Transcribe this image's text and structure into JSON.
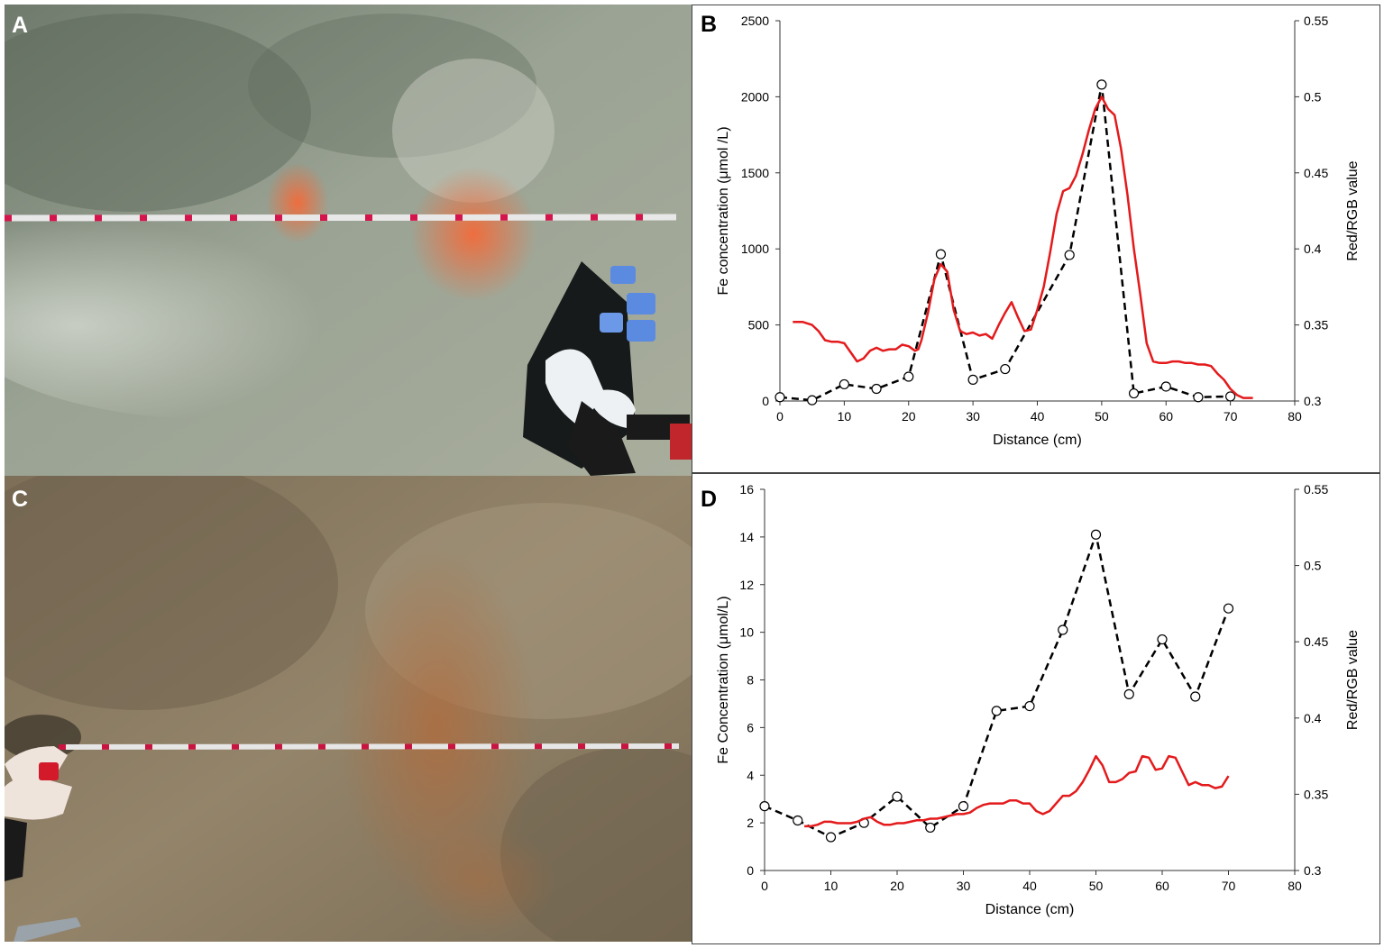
{
  "panels": {
    "a": {
      "label": "A"
    },
    "b": {
      "label": "B"
    },
    "c": {
      "label": "C"
    },
    "d": {
      "label": "D"
    }
  },
  "colors": {
    "red_rgb_line": "#e41a1c",
    "fe_line": "#000000",
    "photo_a_sediment": "#8f9a8e",
    "photo_a_stain": "#f26b3a",
    "photo_c_sediment": "#8a7a60",
    "photo_c_stain": "#b26a3a"
  },
  "chart_data": [
    {
      "panel": "B",
      "type": "line",
      "xlabel": "Distance (cm)",
      "ylabel": "Fe concentration (μmol /L)",
      "y2label": "Red/RGB value",
      "xlim": [
        0,
        80
      ],
      "xticks": [
        0,
        10,
        20,
        30,
        40,
        50,
        60,
        70,
        80
      ],
      "ylim": [
        0,
        2500
      ],
      "yticks": [
        0,
        500,
        1000,
        1500,
        2000,
        2500
      ],
      "y2lim": [
        0.3,
        0.55
      ],
      "y2ticks": [
        "0.3",
        "0.35",
        "0.4",
        "0.45",
        "0.5",
        "0.55"
      ],
      "grid": false,
      "series": [
        {
          "axis": "left",
          "style": "dashed",
          "marker": "open-circle",
          "x": [
            0,
            5,
            10,
            15,
            20,
            25,
            30,
            35,
            45,
            50,
            55,
            60,
            65,
            70
          ],
          "values": [
            25,
            5,
            110,
            80,
            160,
            965,
            140,
            210,
            960,
            2080,
            50,
            95,
            25,
            30
          ]
        },
        {
          "axis": "right",
          "style": "solid",
          "marker": "none",
          "x": [
            2,
            3.5,
            5,
            6,
            7,
            8,
            9,
            10,
            11,
            12,
            13,
            14,
            15,
            16,
            17,
            18,
            19,
            20,
            21,
            21.5,
            22,
            23,
            24,
            25,
            26,
            27,
            28,
            29,
            30,
            31,
            32,
            33,
            34,
            35,
            36,
            37,
            38,
            39,
            40,
            41,
            42,
            43,
            44,
            45,
            46,
            47,
            48,
            49,
            50,
            51,
            52,
            53,
            54,
            55,
            56,
            57,
            58,
            59,
            60,
            61,
            62,
            63,
            64,
            65,
            66,
            67,
            68,
            69,
            70,
            71,
            72,
            73.5
          ],
          "values": [
            0.352,
            0.352,
            0.35,
            0.346,
            0.34,
            0.339,
            0.339,
            0.338,
            0.332,
            0.326,
            0.328,
            0.333,
            0.335,
            0.333,
            0.334,
            0.334,
            0.337,
            0.336,
            0.333,
            0.334,
            0.34,
            0.358,
            0.38,
            0.39,
            0.385,
            0.36,
            0.346,
            0.344,
            0.345,
            0.343,
            0.344,
            0.341,
            0.35,
            0.358,
            0.365,
            0.355,
            0.346,
            0.347,
            0.36,
            0.375,
            0.398,
            0.423,
            0.438,
            0.44,
            0.448,
            0.462,
            0.478,
            0.492,
            0.5,
            0.492,
            0.488,
            0.466,
            0.436,
            0.4,
            0.37,
            0.338,
            0.326,
            0.325,
            0.325,
            0.326,
            0.326,
            0.325,
            0.325,
            0.324,
            0.324,
            0.323,
            0.318,
            0.314,
            0.308,
            0.304,
            0.302,
            0.302
          ]
        }
      ]
    },
    {
      "panel": "D",
      "type": "line",
      "xlabel": "Distance (cm)",
      "ylabel": "Fe Concentration (μmol/L)",
      "y2label": "Red/RGB value",
      "xlim": [
        0,
        80
      ],
      "xticks": [
        0,
        10,
        20,
        30,
        40,
        50,
        60,
        70,
        80
      ],
      "ylim": [
        0,
        16
      ],
      "yticks": [
        0,
        2,
        4,
        6,
        8,
        10,
        12,
        14,
        16
      ],
      "y2lim": [
        0.3,
        0.55
      ],
      "y2ticks": [
        "0.3",
        "0.35",
        "0.4",
        "0.45",
        "0.5",
        "0.55"
      ],
      "grid": false,
      "series": [
        {
          "axis": "left",
          "style": "dashed",
          "marker": "open-circle",
          "x": [
            0,
            5,
            10,
            15,
            20,
            25,
            30,
            35,
            40,
            45,
            50,
            55,
            60,
            65,
            70
          ],
          "values": [
            2.7,
            2.1,
            1.4,
            2.0,
            3.1,
            1.8,
            2.7,
            6.7,
            6.9,
            10.1,
            14.1,
            7.4,
            9.7,
            7.3,
            11.0
          ]
        },
        {
          "axis": "right",
          "style": "solid",
          "marker": "none",
          "x": [
            6,
            7,
            8,
            9,
            10,
            11,
            12,
            13,
            14,
            15,
            16,
            17,
            18,
            19,
            20,
            21,
            22,
            23,
            24,
            25,
            26,
            27,
            28,
            29,
            30,
            31,
            32,
            33,
            34,
            35,
            36,
            37,
            38,
            39,
            40,
            41,
            42,
            43,
            44,
            45,
            46,
            47,
            48,
            49,
            50,
            51,
            52,
            53,
            54,
            55,
            56,
            57,
            58,
            59,
            60,
            61,
            62,
            63,
            64,
            65,
            66,
            67,
            68,
            69,
            70
          ],
          "values": [
            0.329,
            0.329,
            0.33,
            0.332,
            0.332,
            0.331,
            0.331,
            0.331,
            0.332,
            0.334,
            0.335,
            0.332,
            0.33,
            0.33,
            0.331,
            0.331,
            0.332,
            0.333,
            0.333,
            0.334,
            0.334,
            0.335,
            0.336,
            0.337,
            0.337,
            0.338,
            0.341,
            0.343,
            0.344,
            0.344,
            0.344,
            0.346,
            0.346,
            0.344,
            0.344,
            0.339,
            0.337,
            0.339,
            0.344,
            0.349,
            0.349,
            0.352,
            0.358,
            0.366,
            0.375,
            0.369,
            0.358,
            0.358,
            0.36,
            0.364,
            0.365,
            0.375,
            0.374,
            0.366,
            0.367,
            0.375,
            0.374,
            0.365,
            0.356,
            0.358,
            0.356,
            0.356,
            0.354,
            0.355,
            0.362
          ]
        }
      ]
    }
  ]
}
